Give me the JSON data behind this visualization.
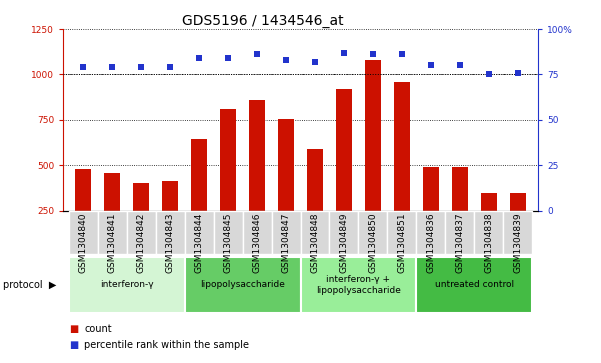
{
  "title": "GDS5196 / 1434546_at",
  "samples": [
    "GSM1304840",
    "GSM1304841",
    "GSM1304842",
    "GSM1304843",
    "GSM1304844",
    "GSM1304845",
    "GSM1304846",
    "GSM1304847",
    "GSM1304848",
    "GSM1304849",
    "GSM1304850",
    "GSM1304851",
    "GSM1304836",
    "GSM1304837",
    "GSM1304838",
    "GSM1304839"
  ],
  "counts": [
    480,
    455,
    400,
    415,
    645,
    810,
    860,
    755,
    590,
    920,
    1080,
    960,
    490,
    490,
    345,
    345
  ],
  "percentiles": [
    79,
    79,
    79,
    79,
    84,
    84,
    86,
    83,
    82,
    87,
    86,
    86,
    80,
    80,
    75,
    76
  ],
  "groups": [
    {
      "label": "interferon-γ",
      "start": 0,
      "end": 4,
      "color": "#d4f5d4"
    },
    {
      "label": "lipopolysaccharide",
      "start": 4,
      "end": 8,
      "color": "#66cc66"
    },
    {
      "label": "interferon-γ +\nlipopolysaccharide",
      "start": 8,
      "end": 12,
      "color": "#99ee99"
    },
    {
      "label": "untreated control",
      "start": 12,
      "end": 16,
      "color": "#44bb44"
    }
  ],
  "ylim_left": [
    250,
    1250
  ],
  "ylim_right": [
    0,
    100
  ],
  "yticks_left": [
    250,
    500,
    750,
    1000,
    1250
  ],
  "yticks_right": [
    0,
    25,
    50,
    75,
    100
  ],
  "bar_color": "#cc1100",
  "dot_color": "#2233cc",
  "bg_color": "#ffffff",
  "xtick_bg": "#d8d8d8",
  "title_fontsize": 10,
  "tick_fontsize": 6.5,
  "protocol_label": "protocol",
  "legend_count": "count",
  "legend_percentile": "percentile rank within the sample"
}
